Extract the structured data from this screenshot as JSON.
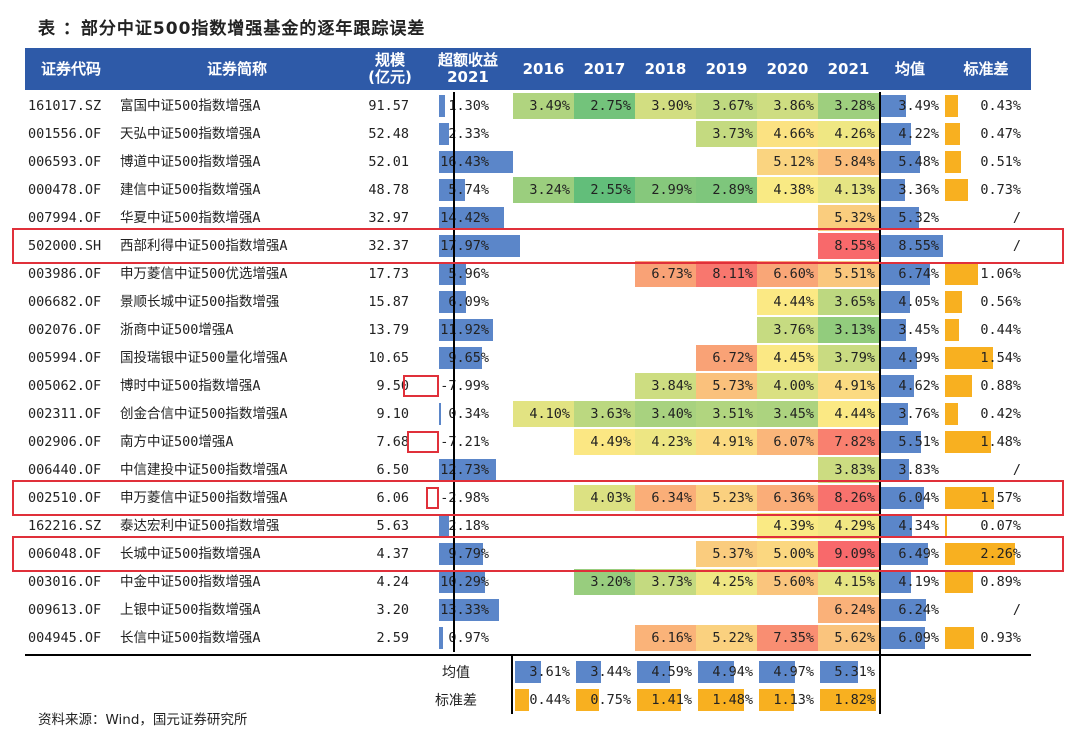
{
  "title": "表 ：部分中证500指数增强基金的逐年跟踪误差",
  "headers": {
    "code": "证券代码",
    "name": "证券简称",
    "scale": "规模\n(亿元)",
    "excess": "超额收益\n2021",
    "years": [
      "2016",
      "2017",
      "2018",
      "2019",
      "2020",
      "2021"
    ],
    "mean": "均值",
    "std": "标准差"
  },
  "rows": [
    {
      "code": "161017.SZ",
      "name": "富国中证500指数增强A",
      "scale": "91.57",
      "excess": "1.30%",
      "excess_value": 1.3,
      "years": [
        "3.49%",
        "2.75%",
        "3.90%",
        "3.67%",
        "3.86%",
        "3.28%"
      ],
      "mean": "3.49%",
      "mean_value": 3.49,
      "std": "0.43%",
      "std_value": 0.43
    },
    {
      "code": "001556.OF",
      "name": "天弘中证500指数增强A",
      "scale": "52.48",
      "excess": "2.33%",
      "excess_value": 2.33,
      "years": [
        "",
        "",
        "",
        "3.73%",
        "4.66%",
        "4.26%"
      ],
      "mean": "4.22%",
      "mean_value": 4.22,
      "std": "0.47%",
      "std_value": 0.47
    },
    {
      "code": "006593.OF",
      "name": "博道中证500指数增强A",
      "scale": "52.01",
      "excess": "16.43%",
      "excess_value": 16.43,
      "years": [
        "",
        "",
        "",
        "",
        "5.12%",
        "5.84%"
      ],
      "mean": "5.48%",
      "mean_value": 5.48,
      "std": "0.51%",
      "std_value": 0.51
    },
    {
      "code": "000478.OF",
      "name": "建信中证500指数增强A",
      "scale": "48.78",
      "excess": "5.74%",
      "excess_value": 5.74,
      "years": [
        "3.24%",
        "2.55%",
        "2.99%",
        "2.89%",
        "4.38%",
        "4.13%"
      ],
      "mean": "3.36%",
      "mean_value": 3.36,
      "std": "0.73%",
      "std_value": 0.73
    },
    {
      "code": "007994.OF",
      "name": "华夏中证500指数增强A",
      "scale": "32.97",
      "excess": "14.42%",
      "excess_value": 14.42,
      "years": [
        "",
        "",
        "",
        "",
        "",
        "5.32%"
      ],
      "mean": "5.32%",
      "mean_value": 5.32,
      "std": "/",
      "std_value": 0
    },
    {
      "code": "502000.SH",
      "name": "西部利得中证500指数增强A",
      "scale": "32.37",
      "excess": "17.97%",
      "excess_value": 17.97,
      "years": [
        "",
        "",
        "",
        "",
        "",
        "8.55%"
      ],
      "mean": "8.55%",
      "mean_value": 8.55,
      "std": "/",
      "std_value": 0
    },
    {
      "code": "003986.OF",
      "name": "申万菱信中证500优选增强A",
      "scale": "17.73",
      "excess": "5.96%",
      "excess_value": 5.96,
      "years": [
        "",
        "",
        "6.73%",
        "8.11%",
        "6.60%",
        "5.51%"
      ],
      "mean": "6.74%",
      "mean_value": 6.74,
      "std": "1.06%",
      "std_value": 1.06
    },
    {
      "code": "006682.OF",
      "name": "景顺长城中证500指数增强",
      "scale": "15.87",
      "excess": "6.09%",
      "excess_value": 6.09,
      "years": [
        "",
        "",
        "",
        "",
        "4.44%",
        "3.65%"
      ],
      "mean": "4.05%",
      "mean_value": 4.05,
      "std": "0.56%",
      "std_value": 0.56
    },
    {
      "code": "002076.OF",
      "name": "浙商中证500增强A",
      "scale": "13.79",
      "excess": "11.92%",
      "excess_value": 11.92,
      "years": [
        "",
        "",
        "",
        "",
        "3.76%",
        "3.13%"
      ],
      "mean": "3.45%",
      "mean_value": 3.45,
      "std": "0.44%",
      "std_value": 0.44
    },
    {
      "code": "005994.OF",
      "name": "国投瑞银中证500量化增强A",
      "scale": "10.65",
      "excess": "9.65%",
      "excess_value": 9.65,
      "years": [
        "",
        "",
        "",
        "6.72%",
        "4.45%",
        "3.79%"
      ],
      "mean": "4.99%",
      "mean_value": 4.99,
      "std": "1.54%",
      "std_value": 1.54
    },
    {
      "code": "005062.OF",
      "name": "博时中证500指数增强A",
      "scale": "9.50",
      "excess": "-7.99%",
      "excess_value": -7.99,
      "years": [
        "",
        "",
        "3.84%",
        "5.73%",
        "4.00%",
        "4.91%"
      ],
      "mean": "4.62%",
      "mean_value": 4.62,
      "std": "0.88%",
      "std_value": 0.88
    },
    {
      "code": "002311.OF",
      "name": "创金合信中证500指数增强A",
      "scale": "9.10",
      "excess": "0.34%",
      "excess_value": 0.34,
      "years": [
        "4.10%",
        "3.63%",
        "3.40%",
        "3.51%",
        "3.45%",
        "4.44%"
      ],
      "mean": "3.76%",
      "mean_value": 3.76,
      "std": "0.42%",
      "std_value": 0.42
    },
    {
      "code": "002906.OF",
      "name": "南方中证500增强A",
      "scale": "7.68",
      "excess": "-7.21%",
      "excess_value": -7.21,
      "years": [
        "",
        "4.49%",
        "4.23%",
        "4.91%",
        "6.07%",
        "7.82%"
      ],
      "mean": "5.51%",
      "mean_value": 5.51,
      "std": "1.48%",
      "std_value": 1.48
    },
    {
      "code": "006440.OF",
      "name": "中信建投中证500指数增强A",
      "scale": "6.50",
      "excess": "12.73%",
      "excess_value": 12.73,
      "years": [
        "",
        "",
        "",
        "",
        "",
        "3.83%"
      ],
      "mean": "3.83%",
      "mean_value": 3.83,
      "std": "/",
      "std_value": 0
    },
    {
      "code": "002510.OF",
      "name": "申万菱信中证500指数增强A",
      "scale": "6.06",
      "excess": "-2.98%",
      "excess_value": -2.98,
      "years": [
        "",
        "4.03%",
        "6.34%",
        "5.23%",
        "6.36%",
        "8.26%"
      ],
      "mean": "6.04%",
      "mean_value": 6.04,
      "std": "1.57%",
      "std_value": 1.57
    },
    {
      "code": "162216.SZ",
      "name": "泰达宏利中证500指数增强",
      "scale": "5.63",
      "excess": "2.18%",
      "excess_value": 2.18,
      "years": [
        "",
        "",
        "",
        "",
        "4.39%",
        "4.29%"
      ],
      "mean": "4.34%",
      "mean_value": 4.34,
      "std": "0.07%",
      "std_value": 0.07
    },
    {
      "code": "006048.OF",
      "name": "长城中证500指数增强A",
      "scale": "4.37",
      "excess": "9.79%",
      "excess_value": 9.79,
      "years": [
        "",
        "",
        "",
        "5.37%",
        "5.00%",
        "9.09%"
      ],
      "mean": "6.49%",
      "mean_value": 6.49,
      "std": "2.26%",
      "std_value": 2.26
    },
    {
      "code": "003016.OF",
      "name": "中金中证500指数增强A",
      "scale": "4.24",
      "excess": "10.29%",
      "excess_value": 10.29,
      "years": [
        "",
        "3.20%",
        "3.73%",
        "4.25%",
        "5.60%",
        "4.15%"
      ],
      "mean": "4.19%",
      "mean_value": 4.19,
      "std": "0.89%",
      "std_value": 0.89
    },
    {
      "code": "009613.OF",
      "name": "上银中证500指数增强A",
      "scale": "3.20",
      "excess": "13.33%",
      "excess_value": 13.33,
      "years": [
        "",
        "",
        "",
        "",
        "",
        "6.24%"
      ],
      "mean": "6.24%",
      "mean_value": 6.24,
      "std": "/",
      "std_value": 0
    },
    {
      "code": "004945.OF",
      "name": "长信中证500指数增强A",
      "scale": "2.59",
      "excess": "0.97%",
      "excess_value": 0.97,
      "years": [
        "",
        "",
        "6.16%",
        "5.22%",
        "7.35%",
        "5.62%"
      ],
      "mean": "6.09%",
      "mean_value": 6.09,
      "std": "0.93%",
      "std_value": 0.93
    }
  ],
  "summary": {
    "mean_label": "均值",
    "std_label": "标准差",
    "mean": [
      "3.61%",
      "3.44%",
      "4.59%",
      "4.94%",
      "4.97%",
      "5.31%"
    ],
    "mean_values": [
      3.61,
      3.44,
      4.59,
      4.94,
      4.97,
      5.31
    ],
    "std": [
      "0.44%",
      "0.75%",
      "1.41%",
      "1.48%",
      "1.13%",
      "1.82%"
    ],
    "std_values": [
      0.44,
      0.75,
      1.41,
      1.48,
      1.13,
      1.82
    ]
  },
  "highlighted_codes": [
    "502000.SH",
    "002510.OF",
    "006048.OF"
  ],
  "footer": "资料来源：Wind，国元证券研究所",
  "colors": {
    "header_bg": "#2e5aa8",
    "bar_blue": "#5b86c9",
    "bar_orange": "#f8b020",
    "highlight_red": "#e0303a",
    "scale_low": "#62be7a",
    "scale_mid": "#fbea84",
    "scale_high": "#f8696b"
  }
}
